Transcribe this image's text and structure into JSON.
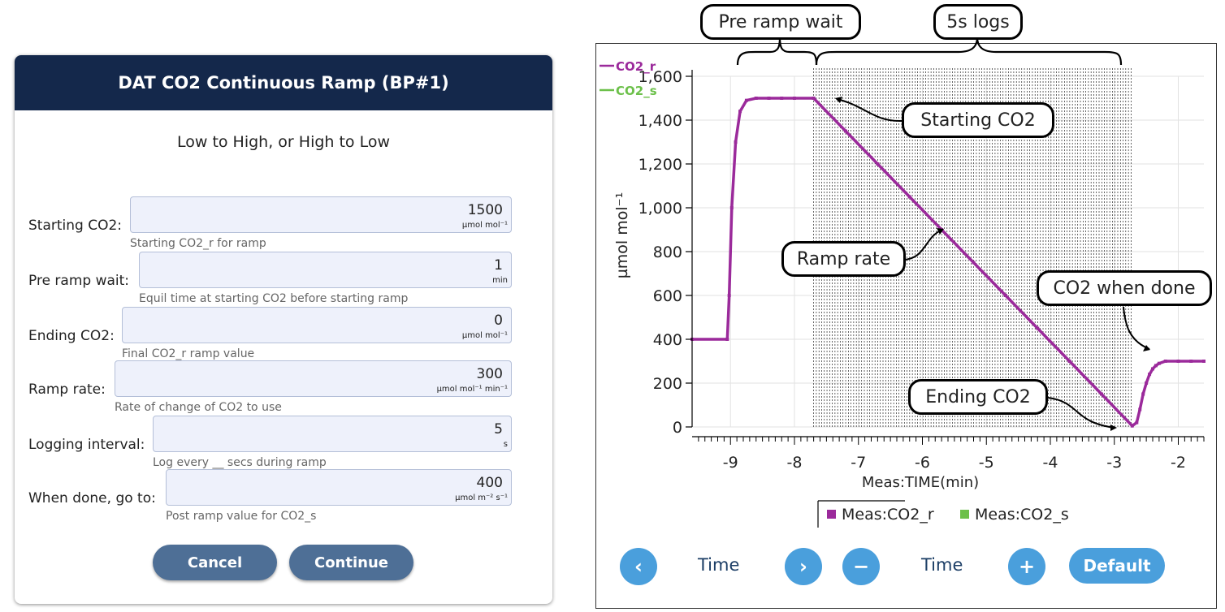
{
  "dialog": {
    "title": "DAT CO2 Continuous Ramp (BP#1)",
    "subtitle": "Low to High, or High to Low",
    "fields": [
      {
        "label": "Starting CO2:",
        "value": "1500",
        "unit": "µmol mol⁻¹",
        "hint": "Starting CO2_r for ramp"
      },
      {
        "label": "Pre ramp wait:",
        "value": "1",
        "unit": "min",
        "hint": "Equil time at starting CO2 before starting ramp"
      },
      {
        "label": "Ending CO2:",
        "value": "0",
        "unit": "µmol mol⁻¹",
        "hint": "Final CO2_r ramp value"
      },
      {
        "label": "Ramp rate:",
        "value": "300",
        "unit": "µmol mol⁻¹ min⁻¹",
        "hint": "Rate of change of CO2 to use"
      },
      {
        "label": "Logging interval:",
        "value": "5",
        "unit": "s",
        "hint": "Log every __ secs during ramp"
      },
      {
        "label": "When done, go to:",
        "value": "400",
        "unit": "µmol m⁻² s⁻¹",
        "hint": "Post ramp value for CO2_s"
      }
    ],
    "cancel_label": "Cancel",
    "continue_label": "Continue"
  },
  "chart_controls": {
    "time_label_left": "Time",
    "time_label_right": "Time",
    "prev_icon": "chevron-left-icon",
    "next_icon": "chevron-right-icon",
    "zoom_out_icon": "minus-icon",
    "zoom_in_icon": "plus-icon",
    "prev_glyph": "‹",
    "next_glyph": "›",
    "minus_glyph": "−",
    "plus_glyph": "+",
    "default_label": "Default"
  },
  "callouts": {
    "pre_ramp_wait": "Pre ramp wait",
    "five_s_logs": "5s logs",
    "starting_co2": "Starting CO2",
    "ramp_rate": "Ramp rate",
    "co2_when_done": "CO2 when done",
    "ending_co2": "Ending CO2"
  },
  "colors": {
    "header_bg": "#14284b",
    "button_bg": "#4e6f96",
    "control_blue": "#4a9fdc",
    "co2_r": "#9b2a9b",
    "co2_s": "#6cc04a"
  },
  "chart_data": {
    "type": "line",
    "xlabel": "Meas:TIME(min)",
    "ylabel": "µmol mol⁻¹",
    "xlim": [
      -9.6,
      -1.6
    ],
    "ylim": [
      0,
      1600
    ],
    "x_ticks": [
      -9,
      -8,
      -7,
      -6,
      -5,
      -4,
      -3,
      -2
    ],
    "y_ticks": [
      0,
      200,
      400,
      600,
      800,
      1000,
      1200,
      1400,
      1600
    ],
    "y_tick_labels": [
      "0",
      "200",
      "400",
      "600",
      "800",
      "1,000",
      "1,200",
      "1,400",
      "1,600"
    ],
    "grid": true,
    "legend_top": [
      "CO2_r",
      "CO2_s"
    ],
    "legend_bottom": [
      "Meas:CO2_r",
      "Meas:CO2_s"
    ],
    "legend_position": "bottom",
    "log_region_x": [
      -7.7,
      -2.7
    ],
    "series": [
      {
        "name": "Meas:CO2_r",
        "x": [
          -9.6,
          -9.05,
          -9.02,
          -8.98,
          -8.92,
          -8.85,
          -8.75,
          -8.6,
          -8.4,
          -8.2,
          -8.0,
          -7.7,
          -7.2,
          -6.7,
          -6.2,
          -5.7,
          -5.2,
          -4.7,
          -4.2,
          -3.7,
          -3.2,
          -2.72,
          -2.65,
          -2.6,
          -2.55,
          -2.5,
          -2.45,
          -2.4,
          -2.35,
          -2.3,
          -2.2,
          -2.0,
          -1.8,
          -1.6
        ],
        "y": [
          400,
          400,
          600,
          1000,
          1300,
          1440,
          1490,
          1500,
          1500,
          1500,
          1500,
          1500,
          1350,
          1200,
          1050,
          900,
          750,
          600,
          450,
          300,
          150,
          5,
          20,
          80,
          150,
          200,
          240,
          265,
          280,
          290,
          300,
          300,
          300,
          300
        ]
      }
    ]
  }
}
